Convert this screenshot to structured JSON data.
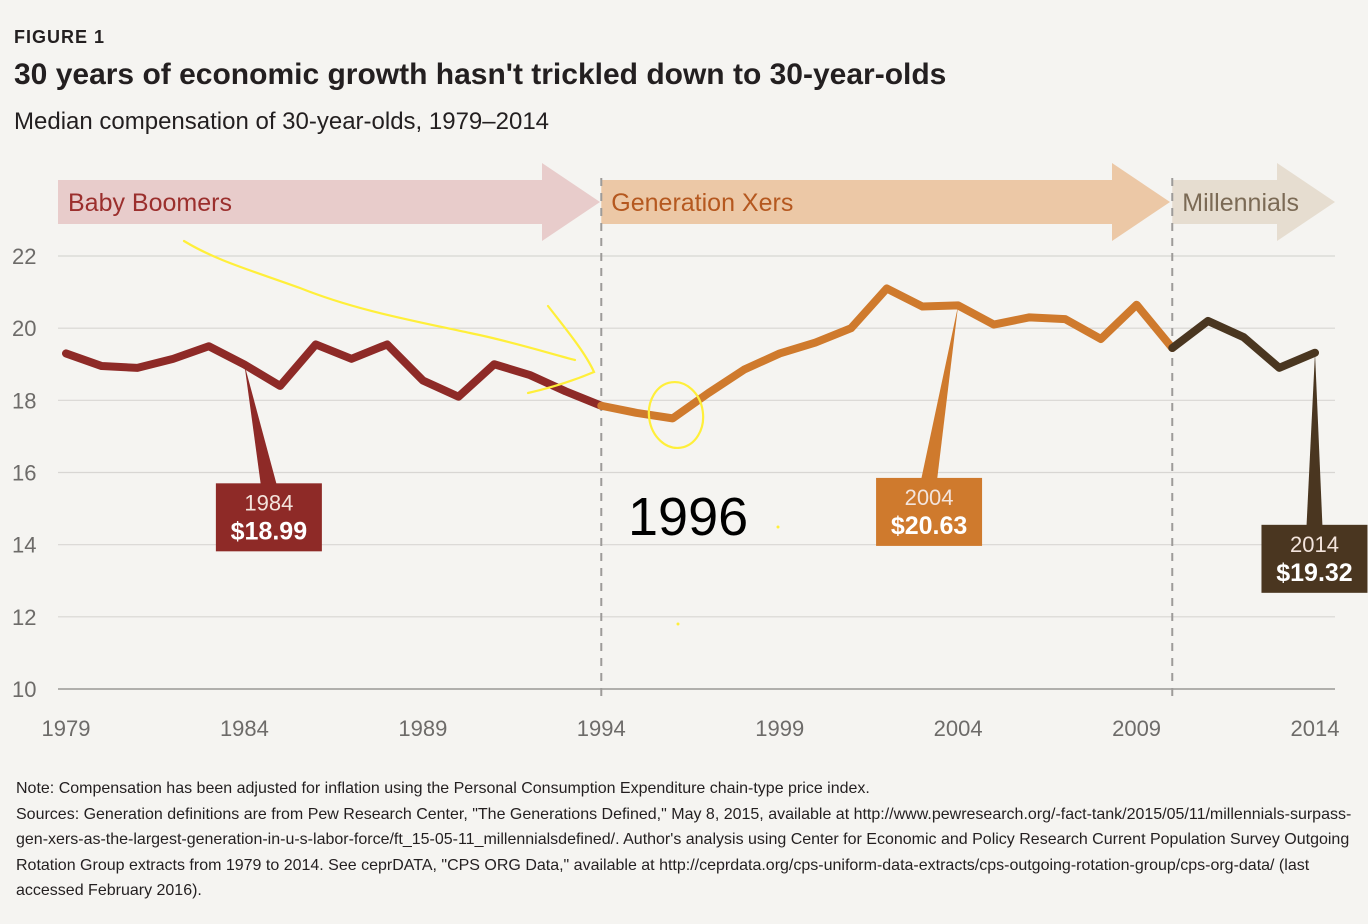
{
  "figure_label": "FIGURE 1",
  "title": "30 years of economic growth hasn't trickled down to 30-year-olds",
  "subtitle": "Median compensation of 30-year-olds, 1979–2014",
  "chart_data": {
    "type": "line",
    "title": "30 years of economic growth hasn't trickled down to 30-year-olds",
    "subtitle": "Median compensation of 30-year-olds, 1979–2014",
    "xlabel": "",
    "ylabel": "",
    "xlim": [
      1979,
      2014
    ],
    "ylim": [
      10,
      22
    ],
    "x_ticks": [
      1979,
      1984,
      1989,
      1994,
      1999,
      2004,
      2009,
      2014
    ],
    "y_ticks": [
      10,
      12,
      14,
      16,
      18,
      20,
      22
    ],
    "grid": true,
    "generation_bands": [
      {
        "name": "Baby Boomers",
        "start": 1979,
        "end": 1994,
        "color": "#e8cccb",
        "text_color": "#9b2f2d"
      },
      {
        "name": "Generation Xers",
        "start": 1994,
        "end": 2010,
        "color": "#ecc8a6",
        "text_color": "#b5581f"
      },
      {
        "name": "Millennials",
        "start": 2010,
        "end": 2014,
        "color": "#e6ddd0",
        "text_color": "#7b6a55"
      }
    ],
    "dividers": [
      1994,
      2010
    ],
    "series": [
      {
        "name": "Baby Boomers",
        "color": "#8e2a27",
        "x": [
          1979,
          1980,
          1981,
          1982,
          1983,
          1984,
          1985,
          1986,
          1987,
          1988,
          1989,
          1990,
          1991,
          1992,
          1993,
          1994
        ],
        "y": [
          19.3,
          18.95,
          18.9,
          19.15,
          19.5,
          18.99,
          18.4,
          19.55,
          19.15,
          19.55,
          18.55,
          18.1,
          19.0,
          18.7,
          18.25,
          17.85
        ]
      },
      {
        "name": "Generation Xers",
        "color": "#cf7a2d",
        "x": [
          1994,
          1995,
          1996,
          1997,
          1998,
          1999,
          2000,
          2001,
          2002,
          2003,
          2004,
          2005,
          2006,
          2007,
          2008,
          2009,
          2010
        ],
        "y": [
          17.85,
          17.65,
          17.5,
          18.2,
          18.85,
          19.3,
          19.6,
          20.0,
          21.1,
          20.6,
          20.63,
          20.1,
          20.3,
          20.25,
          19.7,
          20.65,
          19.45
        ]
      },
      {
        "name": "Millennials",
        "color": "#4a3620",
        "x": [
          2010,
          2011,
          2012,
          2013,
          2014
        ],
        "y": [
          19.45,
          20.2,
          19.75,
          18.9,
          19.32
        ]
      }
    ],
    "callouts": [
      {
        "year": "1984",
        "value": "$18.99",
        "x": 1984,
        "y": 18.99,
        "color": "#8e2a27",
        "box_x": 1983.2,
        "box_y": 15.7
      },
      {
        "year": "2004",
        "value": "$20.63",
        "x": 2004,
        "y": 20.63,
        "color": "#cf7a2d",
        "box_x": 2001.7,
        "box_y": 15.85
      },
      {
        "year": "2014",
        "value": "$19.32",
        "x": 2014,
        "y": 19.32,
        "color": "#4a3620",
        "box_x": 2012.5,
        "box_y": 14.55
      }
    ],
    "annotation": {
      "text": "1996",
      "x": 1996.5,
      "y": 14.4,
      "color": "#ffef3a"
    }
  },
  "notes": {
    "note": "Note: Compensation has been adjusted for inflation using the Personal Consumption Expenditure chain-type price index.",
    "sources": "Sources: Generation definitions are from Pew Research Center, \"The Generations Defined,\" May 8, 2015, available at http://www.pewresearch.org/-fact-tank/2015/05/11/millennials-surpass-gen-xers-as-the-largest-generation-in-u-s-labor-force/ft_15-05-11_millennialsdefined/. Author's analysis using Center for Economic and Policy Research Current Population Survey Outgoing Rotation Group extracts from 1979 to 2014. See ceprDATA, \"CPS ORG Data,\" available at http://ceprdata.org/cps-uniform-data-extracts/cps-outgoing-rotation-group/cps-org-data/ (last accessed February 2016)."
  }
}
